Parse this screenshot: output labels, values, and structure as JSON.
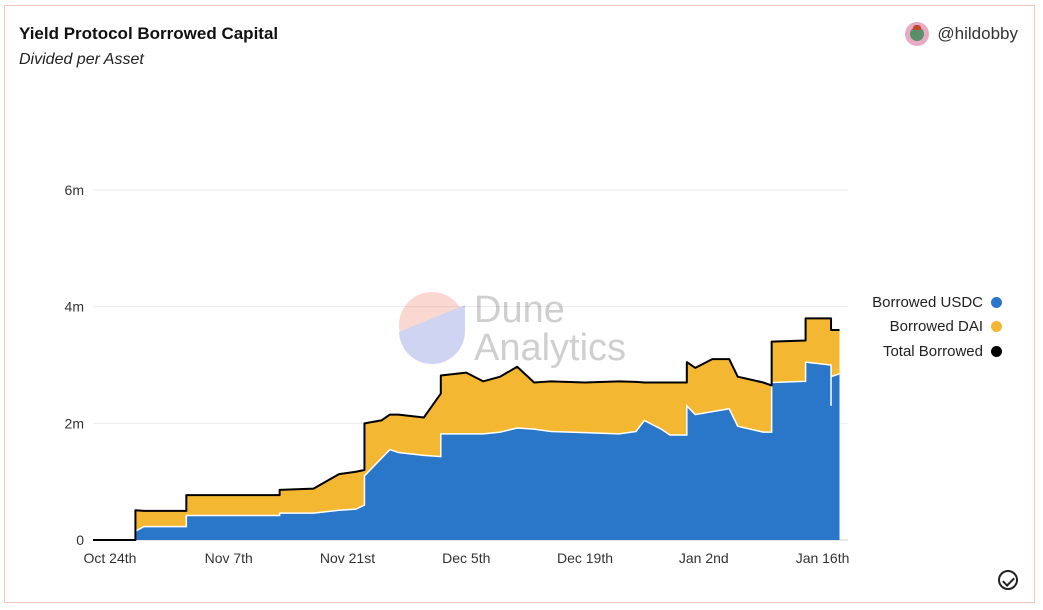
{
  "header": {
    "title": "Yield Protocol Borrowed Capital",
    "subtitle": "Divided per Asset",
    "author": "@hildobby"
  },
  "watermark": {
    "line1": "Dune",
    "line2": "Analytics"
  },
  "colors": {
    "usdc": "#2a77c9",
    "dai": "#f4b731",
    "total": "#000000",
    "grid": "#ececec"
  },
  "chart_data": {
    "type": "area",
    "stacked": true,
    "title": "Yield Protocol Borrowed Capital",
    "subtitle": "Divided per Asset",
    "xlabel": "",
    "ylabel": "",
    "ylim": [
      0,
      6000000
    ],
    "xlim": [
      "2021-10-22",
      "2022-01-19"
    ],
    "grid": true,
    "legend_position": "right",
    "y_ticks": [
      {
        "value": 0,
        "label": "0"
      },
      {
        "value": 2000000,
        "label": "2m"
      },
      {
        "value": 4000000,
        "label": "4m"
      },
      {
        "value": 6000000,
        "label": "6m"
      }
    ],
    "x_ticks": [
      {
        "date": "2021-10-24",
        "label": "Oct 24th"
      },
      {
        "date": "2021-11-07",
        "label": "Nov 7th"
      },
      {
        "date": "2021-11-21",
        "label": "Nov 21st"
      },
      {
        "date": "2021-12-05",
        "label": "Dec 5th"
      },
      {
        "date": "2021-12-19",
        "label": "Dec 19th"
      },
      {
        "date": "2022-01-02",
        "label": "Jan 2nd"
      },
      {
        "date": "2022-01-16",
        "label": "Jan 16th"
      }
    ],
    "series": [
      {
        "name": "Borrowed USDC",
        "data": [
          [
            "2021-10-22",
            0
          ],
          [
            "2021-10-27",
            0
          ],
          [
            "2021-10-27",
            150000
          ],
          [
            "2021-10-28",
            230000
          ],
          [
            "2021-11-02",
            230000
          ],
          [
            "2021-11-02",
            420000
          ],
          [
            "2021-11-13",
            420000
          ],
          [
            "2021-11-13",
            460000
          ],
          [
            "2021-11-17",
            460000
          ],
          [
            "2021-11-20",
            510000
          ],
          [
            "2021-11-22",
            530000
          ],
          [
            "2021-11-23",
            600000
          ],
          [
            "2021-11-23",
            1100000
          ],
          [
            "2021-11-25",
            1400000
          ],
          [
            "2021-11-26",
            1550000
          ],
          [
            "2021-11-27",
            1500000
          ],
          [
            "2021-11-30",
            1450000
          ],
          [
            "2021-12-02",
            1430000
          ],
          [
            "2021-12-02",
            1820000
          ],
          [
            "2021-12-05",
            1820000
          ],
          [
            "2021-12-07",
            1820000
          ],
          [
            "2021-12-09",
            1850000
          ],
          [
            "2021-12-11",
            1920000
          ],
          [
            "2021-12-13",
            1900000
          ],
          [
            "2021-12-15",
            1860000
          ],
          [
            "2021-12-19",
            1840000
          ],
          [
            "2021-12-23",
            1820000
          ],
          [
            "2021-12-25",
            1860000
          ],
          [
            "2021-12-26",
            2050000
          ],
          [
            "2021-12-28",
            1900000
          ],
          [
            "2021-12-29",
            1800000
          ],
          [
            "2021-12-31",
            1800000
          ],
          [
            "2021-12-31",
            2300000
          ],
          [
            "2022-01-01",
            2150000
          ],
          [
            "2022-01-03",
            2200000
          ],
          [
            "2022-01-05",
            2250000
          ],
          [
            "2022-01-06",
            1950000
          ],
          [
            "2022-01-09",
            1850000
          ],
          [
            "2022-01-10",
            1850000
          ],
          [
            "2022-01-10",
            2700000
          ],
          [
            "2022-01-14",
            2720000
          ],
          [
            "2022-01-14",
            3050000
          ],
          [
            "2022-01-17",
            3000000
          ],
          [
            "2022-01-17",
            2300000
          ],
          [
            "2022-01-17",
            2800000
          ],
          [
            "2022-01-18",
            2850000
          ]
        ]
      },
      {
        "name": "Borrowed DAI",
        "data": [
          [
            "2021-10-22",
            0
          ],
          [
            "2021-10-27",
            0
          ],
          [
            "2021-10-27",
            360000
          ],
          [
            "2021-10-28",
            270000
          ],
          [
            "2021-11-02",
            270000
          ],
          [
            "2021-11-02",
            350000
          ],
          [
            "2021-11-13",
            350000
          ],
          [
            "2021-11-13",
            400000
          ],
          [
            "2021-11-17",
            420000
          ],
          [
            "2021-11-20",
            620000
          ],
          [
            "2021-11-22",
            640000
          ],
          [
            "2021-11-23",
            600000
          ],
          [
            "2021-11-23",
            900000
          ],
          [
            "2021-11-25",
            650000
          ],
          [
            "2021-11-26",
            600000
          ],
          [
            "2021-11-27",
            650000
          ],
          [
            "2021-11-30",
            650000
          ],
          [
            "2021-12-02",
            1080000
          ],
          [
            "2021-12-02",
            1000000
          ],
          [
            "2021-12-05",
            1050000
          ],
          [
            "2021-12-07",
            900000
          ],
          [
            "2021-12-09",
            950000
          ],
          [
            "2021-12-11",
            1050000
          ],
          [
            "2021-12-13",
            800000
          ],
          [
            "2021-12-15",
            860000
          ],
          [
            "2021-12-19",
            860000
          ],
          [
            "2021-12-23",
            900000
          ],
          [
            "2021-12-25",
            850000
          ],
          [
            "2021-12-26",
            650000
          ],
          [
            "2021-12-28",
            800000
          ],
          [
            "2021-12-29",
            900000
          ],
          [
            "2021-12-31",
            900000
          ],
          [
            "2021-12-31",
            750000
          ],
          [
            "2022-01-01",
            800000
          ],
          [
            "2022-01-03",
            900000
          ],
          [
            "2022-01-05",
            850000
          ],
          [
            "2022-01-06",
            850000
          ],
          [
            "2022-01-09",
            850000
          ],
          [
            "2022-01-10",
            800000
          ],
          [
            "2022-01-10",
            700000
          ],
          [
            "2022-01-14",
            700000
          ],
          [
            "2022-01-14",
            750000
          ],
          [
            "2022-01-17",
            800000
          ],
          [
            "2022-01-17",
            1500000
          ],
          [
            "2022-01-17",
            800000
          ],
          [
            "2022-01-18",
            750000
          ]
        ]
      },
      {
        "name": "Total Borrowed",
        "data": [
          [
            "2021-10-22",
            0
          ],
          [
            "2021-10-27",
            0
          ],
          [
            "2021-10-27",
            510000
          ],
          [
            "2021-10-28",
            500000
          ],
          [
            "2021-11-02",
            500000
          ],
          [
            "2021-11-02",
            770000
          ],
          [
            "2021-11-13",
            770000
          ],
          [
            "2021-11-13",
            860000
          ],
          [
            "2021-11-17",
            880000
          ],
          [
            "2021-11-20",
            1130000
          ],
          [
            "2021-11-22",
            1170000
          ],
          [
            "2021-11-23",
            1200000
          ],
          [
            "2021-11-23",
            2000000
          ],
          [
            "2021-11-25",
            2050000
          ],
          [
            "2021-11-26",
            2150000
          ],
          [
            "2021-11-27",
            2150000
          ],
          [
            "2021-11-30",
            2100000
          ],
          [
            "2021-12-02",
            2510000
          ],
          [
            "2021-12-02",
            2820000
          ],
          [
            "2021-12-05",
            2870000
          ],
          [
            "2021-12-07",
            2720000
          ],
          [
            "2021-12-09",
            2800000
          ],
          [
            "2021-12-11",
            2970000
          ],
          [
            "2021-12-13",
            2700000
          ],
          [
            "2021-12-15",
            2720000
          ],
          [
            "2021-12-19",
            2700000
          ],
          [
            "2021-12-23",
            2720000
          ],
          [
            "2021-12-25",
            2710000
          ],
          [
            "2021-12-26",
            2700000
          ],
          [
            "2021-12-28",
            2700000
          ],
          [
            "2021-12-29",
            2700000
          ],
          [
            "2021-12-31",
            2700000
          ],
          [
            "2021-12-31",
            3050000
          ],
          [
            "2022-01-01",
            2950000
          ],
          [
            "2022-01-03",
            3100000
          ],
          [
            "2022-01-05",
            3100000
          ],
          [
            "2022-01-06",
            2800000
          ],
          [
            "2022-01-09",
            2700000
          ],
          [
            "2022-01-10",
            2650000
          ],
          [
            "2022-01-10",
            3400000
          ],
          [
            "2022-01-14",
            3420000
          ],
          [
            "2022-01-14",
            3800000
          ],
          [
            "2022-01-17",
            3800000
          ],
          [
            "2022-01-17",
            3800000
          ],
          [
            "2022-01-17",
            3600000
          ],
          [
            "2022-01-18",
            3600000
          ]
        ]
      }
    ]
  }
}
